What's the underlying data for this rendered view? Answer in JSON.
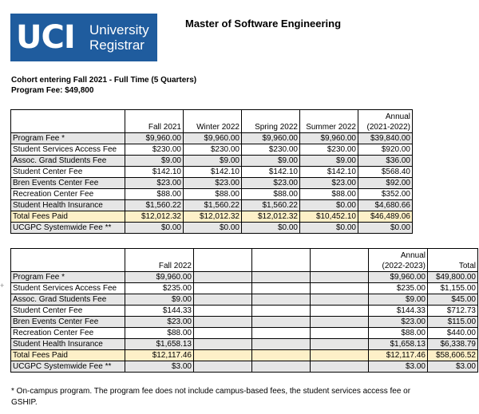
{
  "logo": {
    "mark": "UCI",
    "line1": "University",
    "line2": "Registrar"
  },
  "title": "Master of Software Engineering",
  "cohort": "Cohort entering Fall 2021 - Full Time (5 Quarters)",
  "program_fee": "Program Fee: $49,800",
  "table1": {
    "headers": [
      "",
      "Fall 2021",
      "Winter 2022",
      "Spring 2022",
      "Summer 2022",
      "Annual"
    ],
    "header_sub": "(2021-2022)",
    "rows": [
      [
        "Program Fee *",
        "$9,960.00",
        "$9,960.00",
        "$9,960.00",
        "$9,960.00",
        "$39,840.00"
      ],
      [
        "Student Services Access Fee",
        "$230.00",
        "$230.00",
        "$230.00",
        "$230.00",
        "$920.00"
      ],
      [
        "Assoc. Grad Students Fee",
        "$9.00",
        "$9.00",
        "$9.00",
        "$9.00",
        "$36.00"
      ],
      [
        "Student Center Fee",
        "$142.10",
        "$142.10",
        "$142.10",
        "$142.10",
        "$568.40"
      ],
      [
        "Bren Events Center Fee",
        "$23.00",
        "$23.00",
        "$23.00",
        "$23.00",
        "$92.00"
      ],
      [
        "Recreation Center Fee",
        "$88.00",
        "$88.00",
        "$88.00",
        "$88.00",
        "$352.00"
      ],
      [
        "Student Health Insurance",
        "$1,560.22",
        "$1,560.22",
        "$1,560.22",
        "$0.00",
        "$4,680.66"
      ],
      [
        "Total Fees Paid",
        "$12,012.32",
        "$12,012.32",
        "$12,012.32",
        "$10,452.10",
        "$46,489.06"
      ],
      [
        "UCGPC Systemwide Fee **",
        "$0.00",
        "$0.00",
        "$0.00",
        "$0.00",
        "$0.00"
      ]
    ]
  },
  "table2": {
    "headers": [
      "",
      "Fall 2022",
      "",
      "",
      "",
      "Annual",
      "Total"
    ],
    "header_sub": "(2022-2023)",
    "rows": [
      [
        "Program Fee *",
        "$9,960.00",
        "",
        "",
        "",
        "$9,960.00",
        "$49,800.00"
      ],
      [
        "Student Services Access Fee",
        "$235.00",
        "",
        "",
        "",
        "$235.00",
        "$1,155.00"
      ],
      [
        "Assoc. Grad Students Fee",
        "$9.00",
        "",
        "",
        "",
        "$9.00",
        "$45.00"
      ],
      [
        "Student Center Fee",
        "$144.33",
        "",
        "",
        "",
        "$144.33",
        "$712.73"
      ],
      [
        "Bren Events Center Fee",
        "$23.00",
        "",
        "",
        "",
        "$23.00",
        "$115.00"
      ],
      [
        "Recreation Center Fee",
        "$88.00",
        "",
        "",
        "",
        "$88.00",
        "$440.00"
      ],
      [
        "Student Health Insurance",
        "$1,658.13",
        "",
        "",
        "",
        "$1,658.13",
        "$6,338.79"
      ],
      [
        "Total Fees Paid",
        "$12,117.46",
        "",
        "",
        "",
        "$12,117.46",
        "$58,606.52"
      ],
      [
        "UCGPC Systemwide Fee **",
        "$3.00",
        "",
        "",
        "",
        "$3.00",
        "$3.00"
      ]
    ]
  },
  "row_add_glyph": "+",
  "footnote": "* On-campus program. The program fee does not include campus-based fees, the student services access fee or GSHIP."
}
